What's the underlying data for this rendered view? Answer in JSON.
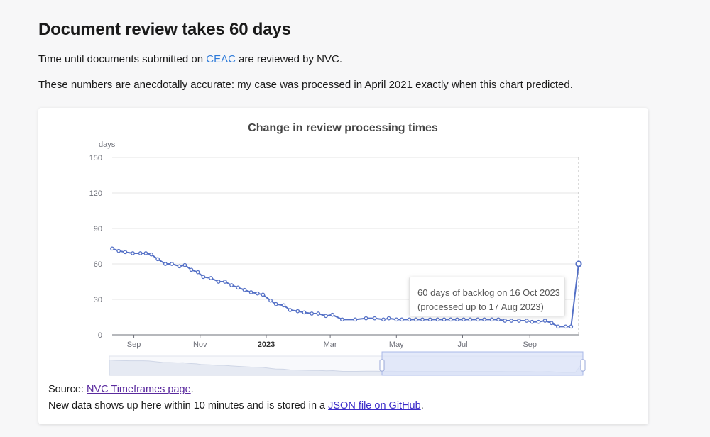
{
  "page": {
    "title": "Document review takes 60 days",
    "intro_before": "Time until documents submitted on ",
    "intro_link": "CEAC",
    "intro_after": " are reviewed by NVC.",
    "note": "These numbers are anecdotally accurate: my case was processed in April 2021 exactly when this chart predicted."
  },
  "footer": {
    "source_label": "Source: ",
    "source_link": "NVC Timeframes page",
    "source_end": ".",
    "new_data_before": "New data shows up here within 10 minutes and is stored in a ",
    "new_data_link": "JSON file on GitHub",
    "new_data_end": "."
  },
  "tooltip": {
    "line1": "60 days of backlog on 16 Oct 2023",
    "line2": "(processed up to 17 Aug 2023)"
  },
  "colors": {
    "line": "#5470c6",
    "grid": "#e6e6e6",
    "axis_text": "#6e7079",
    "title": "#464646",
    "zoom_fill": "#d8e1f8"
  },
  "chart_data": {
    "type": "line",
    "title": "Change in review processing times",
    "ylabel": "days",
    "ylim": [
      0,
      150
    ],
    "yticks": [
      0,
      30,
      60,
      90,
      120,
      150
    ],
    "x_tick_labels": [
      "Sep",
      "Nov",
      "2023",
      "Mar",
      "May",
      "Jul",
      "Sep"
    ],
    "x_tick_bold": [
      false,
      false,
      true,
      false,
      false,
      false,
      false
    ],
    "x_tick_days": [
      20,
      81,
      142,
      201,
      262,
      323,
      385
    ],
    "x_range_days": [
      0,
      430
    ],
    "series": [
      {
        "name": "days of backlog",
        "x_days": [
          0,
          6,
          12,
          19,
          26,
          31,
          36,
          42,
          49,
          55,
          62,
          67,
          73,
          79,
          84,
          91,
          98,
          104,
          110,
          116,
          122,
          128,
          134,
          139,
          146,
          151,
          158,
          164,
          171,
          177,
          184,
          190,
          197,
          203,
          212,
          224,
          234,
          242,
          250,
          255,
          262,
          267,
          274,
          280,
          286,
          293,
          300,
          306,
          312,
          318,
          324,
          330,
          337,
          343,
          350,
          356,
          362,
          368,
          375,
          382,
          387,
          393,
          399,
          405,
          411,
          418,
          423,
          430
        ],
        "values": [
          73,
          71,
          70,
          69,
          69,
          69,
          68,
          64,
          60,
          60,
          58,
          59,
          55,
          53,
          49,
          48,
          45,
          45,
          42,
          40,
          38,
          36,
          35,
          34,
          29,
          26,
          25,
          21,
          20,
          19,
          18,
          18,
          16,
          17,
          13,
          13,
          14,
          14,
          13,
          14,
          13,
          13,
          13,
          13,
          13,
          13,
          13,
          13,
          13,
          13,
          13,
          13,
          13,
          13,
          13,
          13,
          12,
          12,
          12,
          12,
          11,
          11,
          12,
          10,
          7,
          7,
          7,
          60
        ]
      }
    ],
    "highlight_point": {
      "x_day": 430,
      "value": 60
    }
  }
}
